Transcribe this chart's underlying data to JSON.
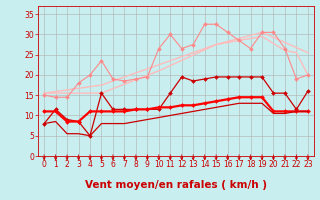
{
  "title": "",
  "xlabel": "Vent moyen/en rafales ( km/h )",
  "ylabel": "",
  "xlim": [
    -0.5,
    23.5
  ],
  "ylim": [
    0,
    37
  ],
  "yticks": [
    0,
    5,
    10,
    15,
    20,
    25,
    30,
    35
  ],
  "xticks": [
    0,
    1,
    2,
    3,
    4,
    5,
    6,
    7,
    8,
    9,
    10,
    11,
    12,
    13,
    14,
    15,
    16,
    17,
    18,
    19,
    20,
    21,
    22,
    23
  ],
  "background_color": "#c8eef0",
  "grid_color": "#b0b0b0",
  "lines": [
    {
      "x": [
        0,
        5,
        10,
        15,
        19,
        23
      ],
      "y": [
        15.5,
        15.5,
        21.0,
        27.5,
        30.5,
        25.5
      ],
      "color": "#ffbbbb",
      "linewidth": 1.0,
      "marker": null
    },
    {
      "x": [
        0,
        5,
        10,
        15,
        19,
        21,
        22,
        23
      ],
      "y": [
        15.5,
        17.5,
        22.5,
        27.5,
        29.5,
        26.0,
        25.5,
        20.0
      ],
      "color": "#ffbbbb",
      "linewidth": 1.0,
      "marker": null
    },
    {
      "x": [
        0,
        1,
        2,
        3,
        4,
        5,
        6,
        7,
        8,
        9,
        10,
        11,
        12,
        13,
        14,
        15,
        16,
        17,
        18,
        19,
        20,
        21,
        22,
        23
      ],
      "y": [
        15.0,
        14.5,
        14.5,
        18.0,
        20.0,
        23.5,
        19.0,
        18.5,
        19.0,
        19.5,
        26.5,
        30.0,
        26.5,
        27.5,
        32.5,
        32.5,
        30.5,
        28.5,
        26.5,
        30.5,
        30.5,
        26.5,
        19.0,
        20.0
      ],
      "color": "#ff8888",
      "linewidth": 0.8,
      "marker": "D",
      "markersize": 2.0
    },
    {
      "x": [
        0,
        1,
        2,
        3,
        4,
        5,
        6,
        7,
        8,
        9,
        10,
        11,
        12,
        13,
        14,
        15,
        16,
        17,
        18,
        19,
        20,
        21,
        22,
        23
      ],
      "y": [
        8.0,
        11.5,
        9.0,
        8.5,
        5.0,
        15.5,
        11.5,
        11.5,
        11.5,
        11.5,
        11.5,
        15.5,
        19.5,
        18.5,
        19.0,
        19.5,
        19.5,
        19.5,
        19.5,
        19.5,
        15.5,
        15.5,
        11.5,
        16.0
      ],
      "color": "#cc0000",
      "linewidth": 0.9,
      "marker": "D",
      "markersize": 2.0
    },
    {
      "x": [
        0,
        1,
        2,
        3,
        4,
        5,
        6,
        7,
        8,
        9,
        10,
        11,
        12,
        13,
        14,
        15,
        16,
        17,
        18,
        19,
        20,
        21,
        22,
        23
      ],
      "y": [
        11.0,
        11.0,
        8.5,
        8.5,
        11.0,
        11.0,
        11.0,
        11.0,
        11.5,
        11.5,
        12.0,
        12.0,
        12.5,
        12.5,
        13.0,
        13.5,
        14.0,
        14.5,
        14.5,
        14.5,
        11.0,
        11.0,
        11.0,
        11.0
      ],
      "color": "#ff0000",
      "linewidth": 1.6,
      "marker": "D",
      "markersize": 2.0
    },
    {
      "x": [
        0,
        1,
        2,
        3,
        4,
        5,
        6,
        7,
        8,
        9,
        10,
        11,
        12,
        13,
        14,
        15,
        16,
        17,
        18,
        19,
        20,
        21,
        22,
        23
      ],
      "y": [
        8.0,
        8.5,
        5.5,
        5.5,
        5.0,
        8.0,
        8.0,
        8.0,
        8.5,
        9.0,
        9.5,
        10.0,
        10.5,
        11.0,
        11.5,
        12.0,
        12.5,
        13.0,
        13.0,
        13.0,
        10.5,
        10.5,
        11.0,
        11.0
      ],
      "color": "#cc0000",
      "linewidth": 0.9,
      "marker": null
    }
  ],
  "arrow_color": "#cc0000",
  "tick_color": "#cc0000",
  "label_color": "#cc0000",
  "tick_fontsize": 5.5,
  "label_fontsize": 7.5
}
